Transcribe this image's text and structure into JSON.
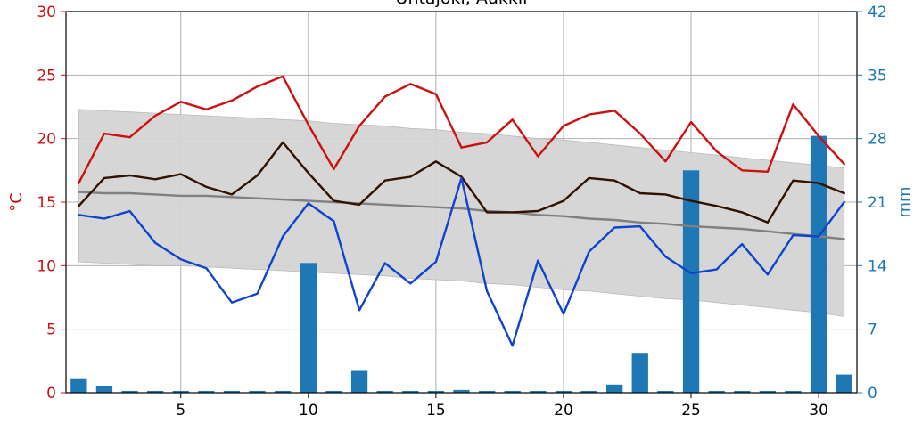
{
  "chart_data": {
    "type": "line",
    "title": "Uhtajoki, Aukkil",
    "x": [
      1,
      2,
      3,
      4,
      5,
      6,
      7,
      8,
      9,
      10,
      11,
      12,
      13,
      14,
      15,
      16,
      17,
      18,
      19,
      20,
      21,
      22,
      23,
      24,
      25,
      26,
      27,
      28,
      29,
      30,
      31
    ],
    "x_ticks": [
      5,
      10,
      15,
      20,
      25,
      30
    ],
    "xlim": [
      0.5,
      31.5
    ],
    "y_left": {
      "label": "°C",
      "ylim": [
        0,
        30
      ],
      "ticks": [
        0,
        5,
        10,
        15,
        20,
        25,
        30
      ],
      "color": "#cc1111"
    },
    "y_right": {
      "label": "mm",
      "ylim": [
        0,
        42
      ],
      "ticks": [
        0,
        7,
        14,
        21,
        28,
        35,
        42
      ],
      "color": "#1f77b4"
    },
    "grid": true,
    "series": [
      {
        "kind": "band",
        "axis": "left",
        "color": "#d4d4d4",
        "upper": [
          22.3,
          22.2,
          22.1,
          22.0,
          21.9,
          21.8,
          21.7,
          21.6,
          21.5,
          21.4,
          21.2,
          21.1,
          21.0,
          20.8,
          20.7,
          20.5,
          20.4,
          20.2,
          20.0,
          19.9,
          19.7,
          19.5,
          19.3,
          19.1,
          18.9,
          18.7,
          18.5,
          18.3,
          18.1,
          17.9,
          17.7
        ],
        "lower": [
          10.3,
          10.2,
          10.1,
          10.0,
          10.0,
          9.9,
          9.8,
          9.7,
          9.6,
          9.5,
          9.4,
          9.3,
          9.2,
          9.0,
          8.9,
          8.8,
          8.6,
          8.5,
          8.3,
          8.1,
          8.0,
          7.8,
          7.6,
          7.4,
          7.3,
          7.1,
          6.9,
          6.7,
          6.5,
          6.3,
          6.0
        ]
      },
      {
        "kind": "bar",
        "axis": "right",
        "color": "#1f77b4",
        "values": [
          1.5,
          0.7,
          0.2,
          0.2,
          0.2,
          0.2,
          0.2,
          0.2,
          0.2,
          14.3,
          0.2,
          2.4,
          0.2,
          0.2,
          0.2,
          0.3,
          0.2,
          0.2,
          0.2,
          0.2,
          0.2,
          0.9,
          4.4,
          0.2,
          24.5,
          0.2,
          0.2,
          0.2,
          0.2,
          28.3,
          2.0
        ]
      },
      {
        "kind": "line",
        "axis": "left",
        "color": "#808080",
        "values": [
          15.8,
          15.7,
          15.7,
          15.6,
          15.5,
          15.5,
          15.4,
          15.3,
          15.2,
          15.1,
          15.0,
          14.9,
          14.8,
          14.7,
          14.6,
          14.5,
          14.3,
          14.2,
          14.0,
          13.9,
          13.7,
          13.6,
          13.4,
          13.3,
          13.1,
          13.0,
          12.9,
          12.7,
          12.5,
          12.3,
          12.1
        ]
      },
      {
        "kind": "line",
        "axis": "left",
        "color": "#cc1111",
        "values": [
          16.5,
          20.4,
          20.1,
          21.8,
          22.9,
          22.3,
          23.0,
          24.1,
          24.9,
          21.1,
          17.6,
          21.0,
          23.3,
          24.3,
          23.5,
          19.3,
          19.7,
          21.5,
          18.6,
          21.0,
          21.9,
          22.2,
          20.4,
          18.2,
          21.3,
          19.0,
          17.5,
          17.4,
          22.7,
          20.2,
          18.0
        ]
      },
      {
        "kind": "line",
        "axis": "left",
        "color": "#331100",
        "values": [
          14.7,
          16.9,
          17.1,
          16.8,
          17.2,
          16.2,
          15.6,
          17.1,
          19.7,
          17.3,
          15.1,
          14.8,
          16.7,
          17.0,
          18.2,
          17.0,
          14.2,
          14.2,
          14.3,
          15.1,
          16.9,
          16.7,
          15.7,
          15.6,
          15.1,
          14.7,
          14.2,
          13.4,
          16.7,
          16.5,
          15.7
        ]
      },
      {
        "kind": "line",
        "axis": "left",
        "color": "#1144cc",
        "values": [
          14.0,
          13.7,
          14.3,
          11.8,
          10.5,
          9.8,
          7.1,
          7.8,
          12.3,
          14.9,
          13.5,
          6.5,
          10.2,
          8.6,
          10.3,
          16.9,
          8.0,
          3.7,
          10.4,
          6.2,
          11.1,
          13.0,
          13.1,
          10.7,
          9.4,
          9.7,
          11.7,
          9.3,
          12.4,
          12.3,
          15.0
        ]
      }
    ]
  }
}
